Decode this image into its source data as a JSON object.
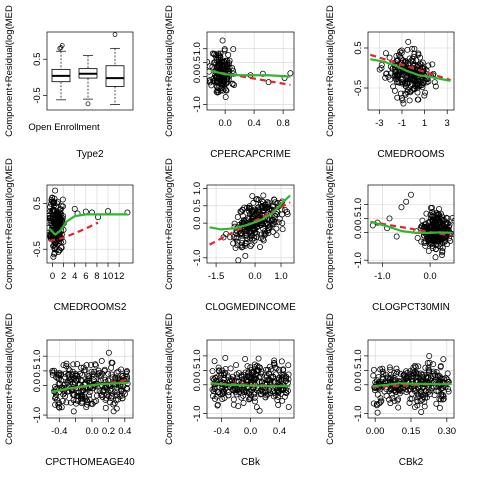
{
  "window": {
    "title": ""
  },
  "chart_data": [
    {
      "type": "boxplot",
      "xlabel": "Type2",
      "ylabel": "Component+Residual(log(MED",
      "categories": [
        "Open Enrollment",
        "",
        ""
      ],
      "xticklabels": [
        "Open Enrollment"
      ],
      "ylim": [
        -0.9,
        1.25
      ],
      "yticks": [
        -0.5,
        0.5
      ],
      "yticklabels": [
        "-0.5",
        "0.5"
      ],
      "boxes": [
        {
          "min": -0.62,
          "q1": -0.12,
          "median": 0.04,
          "q3": 0.22,
          "max": 0.72,
          "outliers": [
            0.82,
            0.88,
            0.8
          ]
        },
        {
          "min": -0.6,
          "q1": -0.02,
          "median": 0.1,
          "q3": 0.24,
          "max": 0.6,
          "outliers": [
            -0.73
          ]
        },
        {
          "min": -0.75,
          "q1": -0.25,
          "median": -0.02,
          "q3": 0.32,
          "max": 0.8,
          "outliers": [
            1.18
          ]
        }
      ]
    },
    {
      "type": "scatter",
      "xlabel": "CPERCAPCRIME",
      "ylabel": "Component+Residual(log(MED",
      "xlim": [
        -0.25,
        0.95
      ],
      "ylim": [
        -1.2,
        1.6
      ],
      "xticks": [
        0.0,
        0.4,
        0.8
      ],
      "xticklabels": [
        "0.0",
        "0.4",
        "0.8"
      ],
      "yticks": [
        -1.0,
        0.0,
        0.5,
        1.0
      ],
      "yticklabels": [
        "-1.0",
        "0.0",
        "0.5",
        "1.0"
      ],
      "grid": true,
      "cloud": {
        "center_x": -0.05,
        "spread_x": 0.07,
        "center_y": 0.15,
        "spread_y": 0.42,
        "n": 170,
        "seed": 11,
        "tail": [
          [
            0.35,
            0.05
          ],
          [
            0.52,
            0.1
          ],
          [
            0.82,
            -0.05
          ],
          [
            0.9,
            0.12
          ],
          [
            0.6,
            -0.2
          ]
        ]
      },
      "series": [
        {
          "name": "Component",
          "style": "dashed",
          "color": "#e3262a",
          "x": [
            -0.2,
            0.9
          ],
          "y": [
            0.2,
            -0.3
          ]
        },
        {
          "name": "Residual",
          "style": "solid",
          "color": "#2db82d",
          "x": [
            -0.2,
            -0.1,
            0.0,
            0.2,
            0.4,
            0.6,
            0.9
          ],
          "y": [
            0.2,
            0.15,
            0.08,
            0.05,
            0.05,
            0.05,
            0.0
          ]
        }
      ]
    },
    {
      "type": "scatter",
      "xlabel": "CMEDROOMS",
      "ylabel": "Component+Residual(log(MED",
      "xlim": [
        -4.0,
        3.6
      ],
      "ylim": [
        -1.05,
        0.9
      ],
      "xticks": [
        -3,
        -1,
        1,
        3
      ],
      "xticklabels": [
        "-3",
        "-1",
        "1",
        "3"
      ],
      "yticks": [
        -0.5,
        0.5
      ],
      "yticklabels": [
        "-0.5",
        "0.5"
      ],
      "grid": true,
      "cloud": {
        "center_x": -0.4,
        "spread_x": 0.95,
        "center_y": -0.15,
        "spread_y": 0.26,
        "n": 240,
        "seed": 23,
        "slope": -0.07
      },
      "series": [
        {
          "name": "Component",
          "style": "dashed",
          "color": "#e3262a",
          "x": [
            -3.8,
            3.3
          ],
          "y": [
            0.33,
            -0.3
          ]
        },
        {
          "name": "Residual",
          "style": "solid",
          "color": "#2db82d",
          "x": [
            -3.8,
            -2.5,
            -1.5,
            -0.5,
            0.5,
            1.5,
            2.5,
            3.3
          ],
          "y": [
            0.22,
            0.15,
            0.05,
            -0.08,
            -0.18,
            -0.22,
            -0.28,
            -0.32
          ]
        }
      ]
    },
    {
      "type": "scatter",
      "xlabel": "CMEDROOMS2",
      "ylabel": "Component+Residual(log(MED",
      "xlim": [
        -1.0,
        14.5
      ],
      "ylim": [
        -0.8,
        0.9
      ],
      "xticks": [
        0,
        2,
        4,
        6,
        8,
        10,
        12
      ],
      "xticklabels": [
        "0",
        "2",
        "4",
        "6",
        "8",
        "10",
        "12"
      ],
      "yticks": [
        -0.5,
        0.5
      ],
      "yticklabels": [
        "-0.5",
        "0.5"
      ],
      "grid": true,
      "cloud": {
        "center_x": 0.6,
        "spread_x": 0.6,
        "center_y": 0.05,
        "spread_y": 0.3,
        "n": 190,
        "seed": 37,
        "tail": [
          [
            4.0,
            0.38
          ],
          [
            4.5,
            0.28
          ],
          [
            6.0,
            0.32
          ],
          [
            7.1,
            0.3
          ],
          [
            8.2,
            0.2
          ],
          [
            10.0,
            0.33
          ],
          [
            13.5,
            0.3
          ]
        ]
      },
      "series": [
        {
          "name": "Component",
          "style": "dashed",
          "color": "#e3262a",
          "x": [
            -0.6,
            2,
            4,
            6,
            8.2
          ],
          "y": [
            -0.32,
            -0.25,
            -0.15,
            -0.05,
            0.08
          ]
        },
        {
          "name": "Residual",
          "style": "solid",
          "color": "#2db82d",
          "x": [
            -0.6,
            0.5,
            1.5,
            2.5,
            4,
            6,
            8,
            10,
            13.5
          ],
          "y": [
            -0.05,
            -0.18,
            -0.08,
            0.1,
            0.22,
            0.26,
            0.26,
            0.26,
            0.26
          ]
        }
      ]
    },
    {
      "type": "scatter",
      "xlabel": "CLOGMEDINCOME",
      "ylabel": "Component+Residual(log(MED",
      "xlim": [
        -1.85,
        1.5
      ],
      "ylim": [
        -1.15,
        1.1
      ],
      "xticks": [
        -1.5,
        0.0,
        1.0
      ],
      "xticklabels": [
        "-1.5",
        "0.0",
        "1.0"
      ],
      "yticks": [
        -1.0,
        0.0,
        0.5,
        1.0
      ],
      "yticklabels": [
        "-1.0",
        "0.0",
        "0.5",
        "1.0"
      ],
      "grid": true,
      "cloud": {
        "center_x": 0.05,
        "spread_x": 0.5,
        "center_y": 0.0,
        "spread_y": 0.32,
        "n": 260,
        "seed": 51,
        "slope": 0.4
      },
      "series": [
        {
          "name": "Component",
          "style": "dashed",
          "color": "#e3262a",
          "x": [
            -1.75,
            1.35
          ],
          "y": [
            -0.62,
            0.6
          ]
        },
        {
          "name": "Residual",
          "style": "solid",
          "color": "#2db82d",
          "x": [
            -1.75,
            -1.3,
            -0.8,
            -0.3,
            0.2,
            0.7,
            1.0,
            1.35
          ],
          "y": [
            -0.12,
            -0.18,
            -0.15,
            -0.05,
            0.08,
            0.3,
            0.55,
            0.8
          ]
        }
      ]
    },
    {
      "type": "scatter",
      "xlabel": "CLOGPCT30MIN",
      "ylabel": "Component+Residual(log(MED",
      "xlim": [
        -1.3,
        0.5
      ],
      "ylim": [
        -1.1,
        1.7
      ],
      "xticks": [
        -1.0,
        0.0
      ],
      "xticklabels": [
        "-1.0",
        "0.0"
      ],
      "yticks": [
        -1.0,
        0.0,
        0.5,
        1.0
      ],
      "yticklabels": [
        "-1.0",
        "0.0",
        "0.5",
        "1.0"
      ],
      "grid": true,
      "cloud": {
        "center_x": 0.12,
        "spread_x": 0.14,
        "center_y": 0.0,
        "spread_y": 0.33,
        "n": 260,
        "seed": 67,
        "tail": [
          [
            -1.2,
            0.25
          ],
          [
            -1.1,
            0.35
          ],
          [
            -0.9,
            0.15
          ],
          [
            -0.85,
            0.5
          ],
          [
            -0.7,
            -0.15
          ],
          [
            -0.6,
            0.9
          ],
          [
            -0.5,
            1.1
          ],
          [
            -0.4,
            1.35
          ]
        ]
      },
      "series": [
        {
          "name": "Component",
          "style": "dashed",
          "color": "#e3262a",
          "x": [
            -1.25,
            0.45
          ],
          "y": [
            0.38,
            -0.12
          ]
        },
        {
          "name": "Residual",
          "style": "solid",
          "color": "#2db82d",
          "x": [
            -1.25,
            -0.9,
            -0.6,
            -0.3,
            0.0,
            0.2,
            0.45
          ],
          "y": [
            0.38,
            0.22,
            0.05,
            -0.02,
            -0.02,
            0.0,
            -0.02
          ]
        }
      ]
    },
    {
      "type": "scatter",
      "xlabel": "CPCTHOMEAGE40",
      "ylabel": "Component+Residual(log(MED",
      "xlim": [
        -0.55,
        0.5
      ],
      "ylim": [
        -1.1,
        1.55
      ],
      "xticks": [
        -0.4,
        -0.2,
        0.0,
        0.2,
        0.4
      ],
      "xticklabels": [
        "-0.4",
        "",
        "0.0",
        "0.2",
        "0.4"
      ],
      "yticks": [
        -1.0,
        0.0,
        0.5,
        1.0
      ],
      "yticklabels": [
        "-1.0",
        "0.0",
        "0.5",
        "1.0"
      ],
      "grid": true,
      "cloud": {
        "center_x": -0.05,
        "spread_x": 0.2,
        "center_y": 0.0,
        "spread_y": 0.36,
        "n": 280,
        "seed": 79,
        "uniform_x": true
      },
      "series": [
        {
          "name": "Component",
          "style": "dashed",
          "color": "#e3262a",
          "x": [
            -0.5,
            0.45
          ],
          "y": [
            -0.22,
            0.2
          ]
        },
        {
          "name": "Residual",
          "style": "solid",
          "color": "#2db82d",
          "x": [
            -0.5,
            -0.3,
            -0.1,
            0.1,
            0.3,
            0.45
          ],
          "y": [
            -0.22,
            -0.1,
            -0.02,
            0.05,
            0.08,
            0.1
          ]
        }
      ]
    },
    {
      "type": "scatter",
      "xlabel": "CBk",
      "ylabel": "Component+Residual(log(MED",
      "xlim": [
        -0.6,
        0.6
      ],
      "ylim": [
        -1.15,
        1.55
      ],
      "xticks": [
        -0.4,
        0.0,
        0.4
      ],
      "xticklabels": [
        "-0.4",
        "0.0",
        "0.4"
      ],
      "yticks": [
        -1.0,
        0.0,
        0.5,
        1.0
      ],
      "yticklabels": [
        "-1.0",
        "0.0",
        "0.5",
        "1.0"
      ],
      "grid": true,
      "cloud": {
        "center_x": 0.0,
        "spread_x": 0.3,
        "center_y": 0.0,
        "spread_y": 0.36,
        "n": 290,
        "seed": 91,
        "uniform_x": true
      },
      "series": [
        {
          "name": "Component",
          "style": "dashed",
          "color": "#e3262a",
          "x": [
            -0.55,
            0.55
          ],
          "y": [
            0.05,
            -0.05
          ]
        },
        {
          "name": "Residual",
          "style": "solid",
          "color": "#2db82d",
          "x": [
            -0.55,
            -0.3,
            0.0,
            0.3,
            0.55
          ],
          "y": [
            0.05,
            0.0,
            -0.03,
            -0.05,
            -0.05
          ]
        }
      ]
    },
    {
      "type": "scatter",
      "xlabel": "CBk2",
      "ylabel": "Component+Residual(log(MED",
      "xlim": [
        -0.03,
        0.33
      ],
      "ylim": [
        -1.15,
        1.55
      ],
      "xticks": [
        0.0,
        0.15,
        0.3
      ],
      "xticklabels": [
        "0.00",
        "0.15",
        "0.30"
      ],
      "yticks": [
        -1.0,
        0.0,
        0.5,
        1.0
      ],
      "yticklabels": [
        "-1.0",
        "0.0",
        "0.5",
        "1.0"
      ],
      "grid": true,
      "cloud": {
        "center_x": 0.15,
        "spread_x": 0.09,
        "center_y": 0.0,
        "spread_y": 0.36,
        "n": 290,
        "seed": 103,
        "uniform_x": true
      },
      "series": [
        {
          "name": "Component",
          "style": "dashed",
          "color": "#e3262a",
          "x": [
            -0.01,
            0.32
          ],
          "y": [
            -0.08,
            0.05
          ]
        },
        {
          "name": "Residual",
          "style": "solid",
          "color": "#2db82d",
          "x": [
            -0.01,
            0.05,
            0.1,
            0.15,
            0.2,
            0.25,
            0.32
          ],
          "y": [
            -0.05,
            0.0,
            0.05,
            0.04,
            0.03,
            0.02,
            0.02
          ]
        }
      ]
    }
  ]
}
